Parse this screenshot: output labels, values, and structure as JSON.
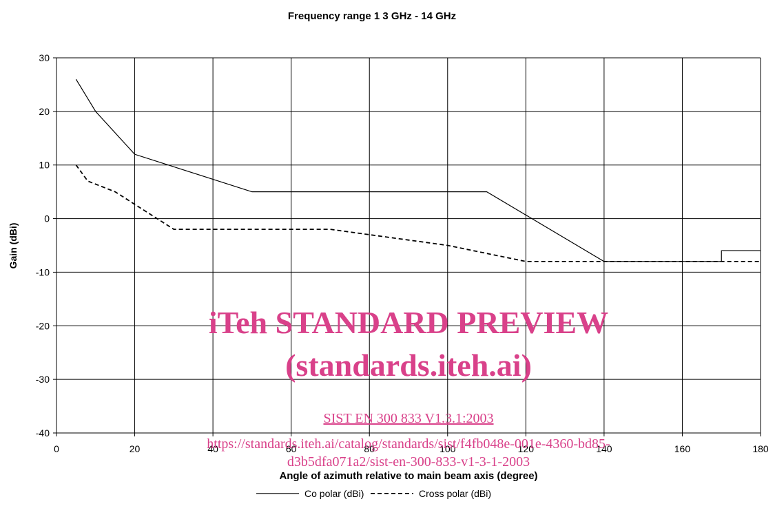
{
  "chart_data": {
    "type": "line",
    "title": "Frequency range 1   3 GHz - 14 GHz",
    "x_label": "Angle of azimuth relative to main beam axis (degree)",
    "y_label": "Gain (dBi)",
    "xlim": [
      0,
      180
    ],
    "xticks": [
      0,
      20,
      40,
      60,
      80,
      100,
      120,
      140,
      160,
      180
    ],
    "ylim": [
      -40,
      30
    ],
    "yticks": [
      -40,
      -30,
      -20,
      -10,
      0,
      10,
      20,
      30
    ],
    "grid": true,
    "legend": "bottom",
    "series": [
      {
        "name": "Co polar (dBi)",
        "color": "#000000",
        "dash": false,
        "x": [
          5,
          10,
          20,
          50,
          110,
          140,
          170,
          170,
          180
        ],
        "values": [
          26,
          20,
          12,
          5,
          5,
          -8,
          -8,
          -6,
          -6
        ]
      },
      {
        "name": "Cross polar (dBi)",
        "color": "#000000",
        "dash": true,
        "x": [
          5,
          8,
          15,
          30,
          70,
          100,
          120,
          180
        ],
        "values": [
          10,
          7,
          5,
          -2,
          -2,
          -5,
          -8,
          -8
        ]
      }
    ],
    "annotations": [
      "iTeh STANDARD PREVIEW",
      "(standards.iteh.ai)",
      "SIST EN 300 833 V1.3.1:2003",
      "https://standards.iteh.ai/catalog/standards/sist/f4fb048e-001e-4360-bd85-",
      "d3b5dfa071a2/sist-en-300-833-v1-3-1-2003"
    ]
  }
}
